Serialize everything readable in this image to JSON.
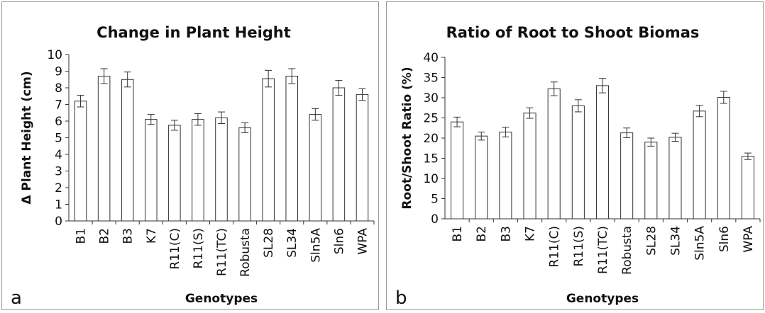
{
  "chart_data": [
    {
      "type": "bar",
      "panel_label": "a",
      "title": "Change in Plant Height",
      "xlabel": "Genotypes",
      "ylabel": "Δ Plant Height (cm)",
      "ylim": [
        0,
        10
      ],
      "yticks": [
        "0",
        "1",
        "2",
        "3",
        "4",
        "5",
        "6",
        "7",
        "8",
        "9",
        "10"
      ],
      "categories": [
        "B1",
        "B2",
        "B3",
        "K7",
        "R11(C)",
        "R11(S)",
        "R11(TC)",
        "Robusta",
        "SL28",
        "SL34",
        "Sln5A",
        "Sln6",
        "WPA"
      ],
      "values": [
        7.2,
        8.7,
        8.5,
        6.1,
        5.75,
        6.1,
        6.2,
        5.6,
        8.55,
        8.7,
        6.4,
        8.0,
        7.6
      ],
      "errors": [
        0.35,
        0.45,
        0.45,
        0.3,
        0.3,
        0.35,
        0.35,
        0.3,
        0.5,
        0.45,
        0.35,
        0.45,
        0.35
      ]
    },
    {
      "type": "bar",
      "panel_label": "b",
      "title": "Ratio of Root to Shoot Biomas",
      "xlabel": "Genotypes",
      "ylabel": "Root/Shoot Ratio (%)",
      "ylim": [
        0,
        40
      ],
      "yticks": [
        "0",
        "5",
        "10",
        "15",
        "20",
        "25",
        "30",
        "35",
        "40"
      ],
      "categories": [
        "B1",
        "B2",
        "B3",
        "K7",
        "R11(C)",
        "R11(S)",
        "R11(TC)",
        "Robusta",
        "SL28",
        "SL34",
        "Sln5A",
        "Sln6",
        "WPA"
      ],
      "values": [
        24.0,
        20.5,
        21.5,
        26.2,
        32.2,
        28.0,
        33.0,
        21.3,
        19.0,
        20.2,
        26.7,
        30.1,
        15.5
      ],
      "errors": [
        1.2,
        1.0,
        1.2,
        1.3,
        1.7,
        1.5,
        1.8,
        1.2,
        1.0,
        1.0,
        1.4,
        1.5,
        0.8
      ]
    }
  ]
}
